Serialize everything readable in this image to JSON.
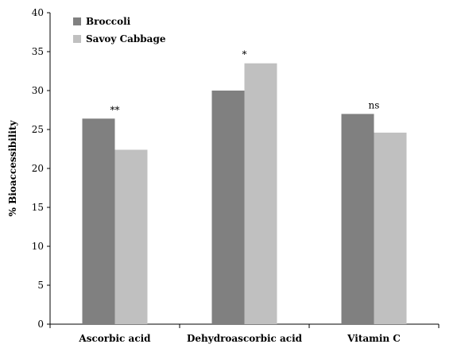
{
  "chart_data": {
    "type": "bar",
    "title": "",
    "xlabel": "",
    "ylabel": "% Bioaccessibility",
    "ylim": [
      0,
      40
    ],
    "yticks": [
      0,
      5,
      10,
      15,
      20,
      25,
      30,
      35,
      40
    ],
    "categories": [
      "Ascorbic acid",
      "Dehydroascorbic acid",
      "Vitamin C"
    ],
    "series": [
      {
        "name": "Broccoli",
        "values": [
          26.4,
          30.0,
          27.0
        ],
        "color": "#808080"
      },
      {
        "name": "Savoy Cabbage",
        "values": [
          22.4,
          33.5,
          24.6
        ],
        "color": "#c0c0c0"
      }
    ],
    "annotations": [
      "**",
      "*",
      "ns"
    ],
    "legend": "top-left",
    "grid": false
  }
}
